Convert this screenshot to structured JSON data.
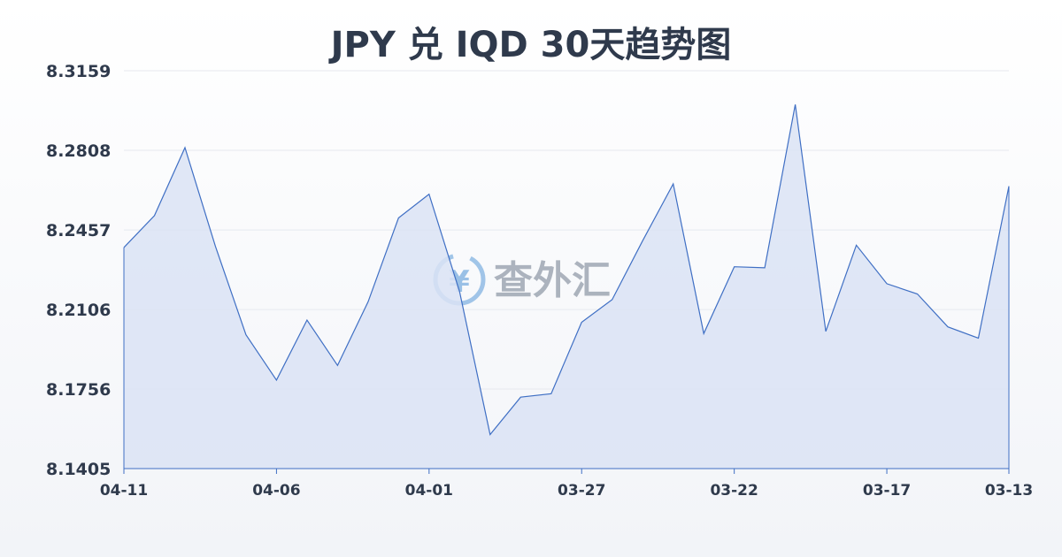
{
  "title": "JPY 兑 IQD 30天趋势图",
  "watermark": {
    "text": "查外汇",
    "icon": "yen-exchange-icon"
  },
  "colors": {
    "line": "#3f6fc4",
    "fill": "#dbe3f5",
    "grid": "#e6e9ef",
    "text": "#2f3a4c"
  },
  "chart_data": {
    "type": "area",
    "title": "JPY 兑 IQD 30天趋势图",
    "xlabel": "",
    "ylabel": "",
    "grid": true,
    "ylim": [
      8.1405,
      8.3159
    ],
    "yticks": [
      8.3159,
      8.2808,
      8.2457,
      8.2106,
      8.1756,
      8.1405
    ],
    "x": [
      "04-11",
      "04-10",
      "04-09",
      "04-08",
      "04-07",
      "04-06",
      "04-05",
      "04-04",
      "04-03",
      "04-02",
      "04-01",
      "03-31",
      "03-30",
      "03-29",
      "03-28",
      "03-27",
      "03-26",
      "03-25",
      "03-24",
      "03-23",
      "03-22",
      "03-21",
      "03-20",
      "03-19",
      "03-18",
      "03-17",
      "03-16",
      "03-15",
      "03-14",
      "03-13"
    ],
    "xticks": [
      "04-11",
      "04-06",
      "04-01",
      "03-27",
      "03-22",
      "03-17",
      "03-13"
    ],
    "series": [
      {
        "values": [
          8.238,
          8.252,
          8.282,
          8.2385,
          8.1995,
          8.1795,
          8.206,
          8.186,
          8.214,
          8.251,
          8.2615,
          8.2185,
          8.1555,
          8.172,
          8.1735,
          8.205,
          8.215,
          8.241,
          8.266,
          8.2,
          8.2295,
          8.229,
          8.301,
          8.201,
          8.239,
          8.222,
          8.2175,
          8.203,
          8.198,
          8.265
        ]
      }
    ]
  }
}
